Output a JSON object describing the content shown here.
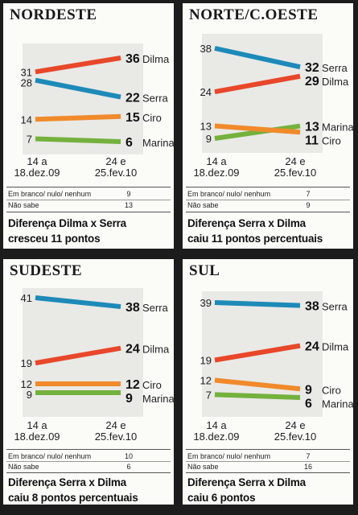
{
  "colors": {
    "Dilma": "#e8472a",
    "Serra": "#1d8ab8",
    "Ciro": "#f08a2b",
    "Marina": "#74b13d"
  },
  "dates": {
    "start": [
      "14 a",
      "18.dez.09"
    ],
    "end": [
      "24 e",
      "25.fev.10"
    ]
  },
  "chart_data": [
    {
      "type": "line",
      "title": "NORDESTE",
      "x": [
        "14 a 18.dez.09",
        "24 e 25.fev.10"
      ],
      "series": [
        {
          "name": "Dilma",
          "values": [
            31,
            36
          ]
        },
        {
          "name": "Serra",
          "values": [
            28,
            22
          ]
        },
        {
          "name": "Ciro",
          "values": [
            14,
            15
          ]
        },
        {
          "name": "Marina",
          "values": [
            7,
            6
          ]
        }
      ],
      "notes": [
        {
          "label": "Em branco/ nulo/ nenhum",
          "value": "9"
        },
        {
          "label": "Não sabe",
          "value": "13"
        }
      ],
      "caption": [
        "Diferença Dilma x Serra",
        "cresceu 11 pontos"
      ]
    },
    {
      "type": "line",
      "title": "NORTE/C.OESTE",
      "x": [
        "14 a 18.dez.09",
        "24 e 25.fev.10"
      ],
      "series": [
        {
          "name": "Serra",
          "values": [
            38,
            32
          ]
        },
        {
          "name": "Dilma",
          "values": [
            24,
            29
          ]
        },
        {
          "name": "Marina",
          "values": [
            9,
            13
          ]
        },
        {
          "name": "Ciro",
          "values": [
            13,
            11
          ]
        }
      ],
      "notes": [
        {
          "label": "Em branco/ nulo/ nenhum",
          "value": "7"
        },
        {
          "label": "Não sabe",
          "value": "9"
        }
      ],
      "caption": [
        "Diferença Serra x Dilma",
        "caiu 11 pontos percentuais"
      ]
    },
    {
      "type": "line",
      "title": "SUDESTE",
      "x": [
        "14 a 18.dez.09",
        "24 e 25.fev.10"
      ],
      "series": [
        {
          "name": "Serra",
          "values": [
            41,
            38
          ]
        },
        {
          "name": "Dilma",
          "values": [
            19,
            24
          ]
        },
        {
          "name": "Ciro",
          "values": [
            12,
            12
          ]
        },
        {
          "name": "Marina",
          "values": [
            9,
            9
          ]
        }
      ],
      "notes": [
        {
          "label": "Em branco/ nulo/ nenhum",
          "value": "10"
        },
        {
          "label": "Não sabe",
          "value": "6"
        }
      ],
      "caption": [
        "Diferença Serra x Dilma",
        "caiu 8 pontos percentuais"
      ]
    },
    {
      "type": "line",
      "title": "SUL",
      "x": [
        "14 a 18.dez.09",
        "24 e 25.fev.10"
      ],
      "series": [
        {
          "name": "Serra",
          "values": [
            39,
            38
          ]
        },
        {
          "name": "Dilma",
          "values": [
            19,
            24
          ]
        },
        {
          "name": "Ciro",
          "values": [
            12,
            9
          ]
        },
        {
          "name": "Marina",
          "values": [
            7,
            6
          ]
        }
      ],
      "notes": [
        {
          "label": "Em branco/ nulo/ nenhum",
          "value": "7"
        },
        {
          "label": "Não sabe",
          "value": "16"
        }
      ],
      "caption": [
        "Diferença Serra x Dilma",
        "caiu 6 pontos"
      ]
    }
  ]
}
